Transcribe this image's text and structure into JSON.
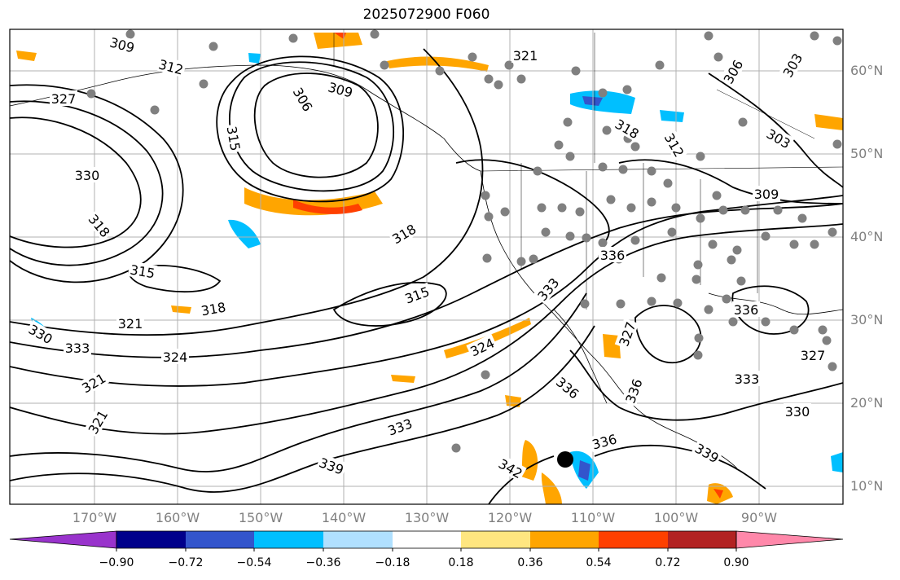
{
  "title": "2025072900 F060",
  "lat_labels": [
    "60°N",
    "50°N",
    "40°N",
    "30°N",
    "20°N",
    "10°N"
  ],
  "lon_labels": [
    "170°W",
    "160°W",
    "150°W",
    "140°W",
    "130°W",
    "120°W",
    "110°W",
    "100°W",
    "90°W"
  ],
  "colorbar": {
    "colors": [
      "#9933cc",
      "#00008b",
      "#3355cc",
      "#00bfff",
      "#b0e0ff",
      "#ffffff",
      "#ffe680",
      "#ffa500",
      "#ff4000",
      "#b22222",
      "#ff88aa"
    ],
    "tick_labels": [
      "−0.90",
      "−0.72",
      "−0.54",
      "−0.36",
      "−0.18",
      "0.18",
      "0.36",
      "0.54",
      "0.72",
      "0.90"
    ]
  },
  "contour_labels": [
    {
      "text": "309"
    },
    {
      "text": "312"
    },
    {
      "text": "327"
    },
    {
      "text": "330"
    },
    {
      "text": "318"
    },
    {
      "text": "315"
    },
    {
      "text": "321"
    },
    {
      "text": "330"
    },
    {
      "text": "333"
    },
    {
      "text": "324"
    },
    {
      "text": "321"
    },
    {
      "text": "321"
    },
    {
      "text": "306"
    },
    {
      "text": "309"
    },
    {
      "text": "315"
    },
    {
      "text": "318"
    },
    {
      "text": "318"
    },
    {
      "text": "315"
    },
    {
      "text": "324"
    },
    {
      "text": "333"
    },
    {
      "text": "339"
    },
    {
      "text": "342"
    },
    {
      "text": "336"
    },
    {
      "text": "336"
    },
    {
      "text": "321"
    },
    {
      "text": "318"
    },
    {
      "text": "312"
    },
    {
      "text": "303"
    },
    {
      "text": "306"
    },
    {
      "text": "303"
    },
    {
      "text": "309"
    },
    {
      "text": "336"
    },
    {
      "text": "336"
    },
    {
      "text": "327"
    },
    {
      "text": "327"
    },
    {
      "text": "333"
    },
    {
      "text": "330"
    },
    {
      "text": "339"
    },
    {
      "text": "336"
    },
    {
      "text": "333"
    }
  ],
  "colors": {
    "station_dot": "#808080",
    "storm_marker": "#000000",
    "grid": "#b0b0b0"
  }
}
